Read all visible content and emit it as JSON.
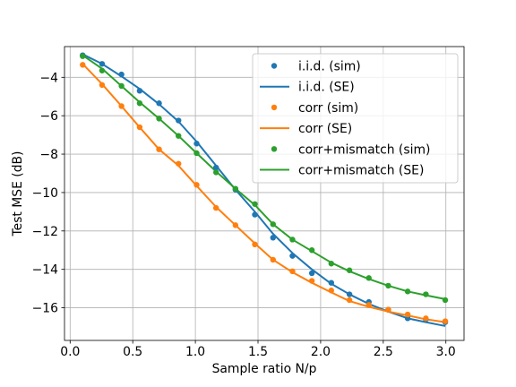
{
  "chart_data": {
    "type": "line",
    "xlabel": "Sample ratio N/p",
    "ylabel": "Test MSE (dB)",
    "xlim": [
      -0.045,
      3.145
    ],
    "ylim": [
      -17.7,
      -2.4
    ],
    "xticks": [
      0.0,
      0.5,
      1.0,
      1.5,
      2.0,
      2.5,
      3.0
    ],
    "xtick_labels": [
      "0.0",
      "0.5",
      "1.0",
      "1.5",
      "2.0",
      "2.5",
      "3.0"
    ],
    "yticks": [
      -4,
      -6,
      -8,
      -10,
      -12,
      -14,
      -16
    ],
    "ytick_labels": [
      "−4",
      "−6",
      "−8",
      "−10",
      "−12",
      "−14",
      "−16"
    ],
    "grid": true,
    "legend_position": "top-right",
    "colors": {
      "blue": "#1f77b4",
      "orange": "#ff7f0e",
      "green": "#2ca02c"
    },
    "series": [
      {
        "name": "i.i.d. (sim)",
        "kind": "scatter",
        "color": "#1f77b4",
        "x": [
          0.1,
          0.255,
          0.41,
          0.555,
          0.71,
          0.865,
          1.01,
          1.165,
          1.32,
          1.475,
          1.62,
          1.775,
          1.93,
          2.085,
          2.23,
          2.385,
          2.54,
          2.695,
          2.84,
          2.995
        ],
        "y": [
          -2.85,
          -3.3,
          -3.85,
          -4.7,
          -5.35,
          -6.25,
          -7.45,
          -8.7,
          -9.85,
          -11.15,
          -12.35,
          -13.3,
          -14.2,
          -14.7,
          -15.3,
          -15.7,
          -16.1,
          -16.55,
          -16.6,
          -16.75
        ]
      },
      {
        "name": "i.i.d. (SE)",
        "kind": "line",
        "color": "#1f77b4",
        "x": [
          0.1,
          0.255,
          0.41,
          0.555,
          0.71,
          0.865,
          1.01,
          1.165,
          1.32,
          1.475,
          1.62,
          1.775,
          1.93,
          2.085,
          2.23,
          2.385,
          2.54,
          2.695,
          2.84,
          2.995
        ],
        "y": [
          -2.8,
          -3.3,
          -3.95,
          -4.6,
          -5.4,
          -6.3,
          -7.35,
          -8.6,
          -9.85,
          -11.0,
          -12.15,
          -13.15,
          -14.0,
          -14.75,
          -15.3,
          -15.8,
          -16.2,
          -16.55,
          -16.75,
          -16.95
        ]
      },
      {
        "name": "corr (sim)",
        "kind": "scatter",
        "color": "#ff7f0e",
        "x": [
          0.1,
          0.255,
          0.41,
          0.555,
          0.71,
          0.865,
          1.01,
          1.165,
          1.32,
          1.475,
          1.62,
          1.775,
          1.93,
          2.085,
          2.23,
          2.385,
          2.54,
          2.695,
          2.84,
          2.995
        ],
        "y": [
          -3.35,
          -4.4,
          -5.5,
          -6.6,
          -7.75,
          -8.5,
          -9.6,
          -10.8,
          -11.7,
          -12.7,
          -13.5,
          -14.1,
          -14.6,
          -15.1,
          -15.6,
          -15.85,
          -16.1,
          -16.35,
          -16.55,
          -16.7
        ]
      },
      {
        "name": "corr (SE)",
        "kind": "line",
        "color": "#ff7f0e",
        "x": [
          0.1,
          0.255,
          0.41,
          0.555,
          0.71,
          0.865,
          1.01,
          1.165,
          1.32,
          1.475,
          1.62,
          1.775,
          1.93,
          2.085,
          2.23,
          2.385,
          2.54,
          2.695,
          2.84,
          2.995
        ],
        "y": [
          -3.3,
          -4.35,
          -5.5,
          -6.6,
          -7.75,
          -8.6,
          -9.65,
          -10.75,
          -11.7,
          -12.65,
          -13.5,
          -14.15,
          -14.7,
          -15.2,
          -15.65,
          -15.95,
          -16.2,
          -16.4,
          -16.6,
          -16.75
        ]
      },
      {
        "name": "corr+mismatch (sim)",
        "kind": "scatter",
        "color": "#2ca02c",
        "x": [
          0.1,
          0.255,
          0.41,
          0.555,
          0.71,
          0.865,
          1.01,
          1.165,
          1.32,
          1.475,
          1.62,
          1.775,
          1.93,
          2.085,
          2.23,
          2.385,
          2.54,
          2.695,
          2.84,
          2.995
        ],
        "y": [
          -2.9,
          -3.65,
          -4.45,
          -5.35,
          -6.15,
          -7.05,
          -7.95,
          -8.95,
          -9.8,
          -10.6,
          -11.65,
          -12.45,
          -13.0,
          -13.7,
          -14.05,
          -14.45,
          -14.85,
          -15.15,
          -15.3,
          -15.6
        ]
      },
      {
        "name": "corr+mismatch (SE)",
        "kind": "line",
        "color": "#2ca02c",
        "x": [
          0.1,
          0.255,
          0.41,
          0.555,
          0.71,
          0.865,
          1.01,
          1.165,
          1.32,
          1.475,
          1.62,
          1.775,
          1.93,
          2.085,
          2.23,
          2.385,
          2.54,
          2.695,
          2.84,
          2.995
        ],
        "y": [
          -2.85,
          -3.55,
          -4.45,
          -5.3,
          -6.15,
          -7.05,
          -7.95,
          -8.9,
          -9.8,
          -10.65,
          -11.65,
          -12.45,
          -13.05,
          -13.65,
          -14.1,
          -14.5,
          -14.85,
          -15.15,
          -15.35,
          -15.55
        ]
      }
    ]
  }
}
